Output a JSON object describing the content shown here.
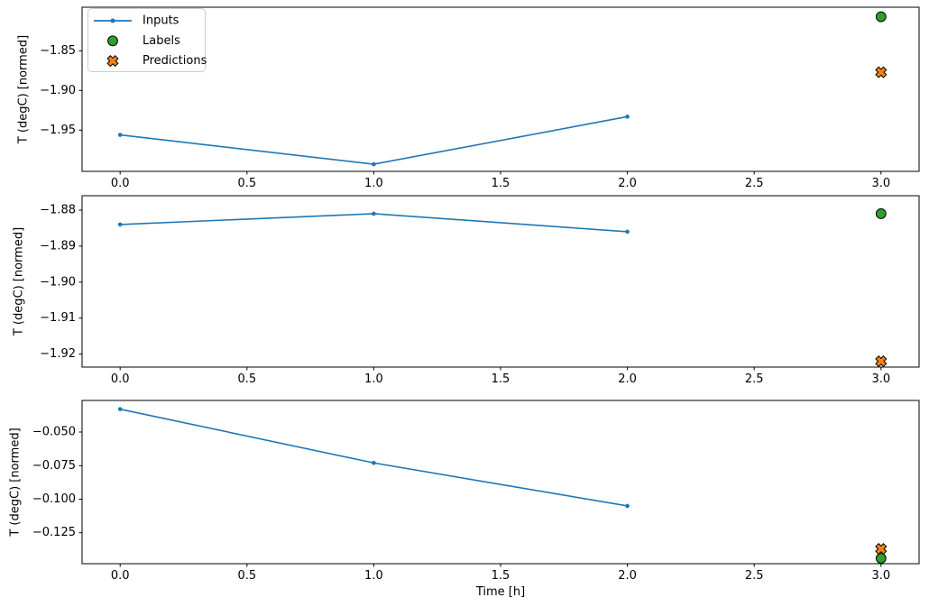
{
  "figure": {
    "background": "#ffffff",
    "x_axis_label": "Time [h]",
    "y_axis_label": "T (degC) [normed]",
    "colors": {
      "inputs": "#1f77b4",
      "labels": "#2ca02c",
      "predictions": "#ff7f0e",
      "marker_edge": "#000000",
      "legend_border": "#cccccc"
    },
    "legend": {
      "position": "upper left",
      "entries": [
        {
          "label": "Inputs",
          "marker": "line-with-dot",
          "color": "#1f77b4"
        },
        {
          "label": "Labels",
          "marker": "filled-circle",
          "color": "#2ca02c"
        },
        {
          "label": "Predictions",
          "marker": "filled-x",
          "color": "#ff7f0e"
        }
      ]
    }
  },
  "chart_data": [
    {
      "type": "line",
      "subplot": 1,
      "ylabel": "T (degC) [normed]",
      "xlim": [
        -0.15,
        3.15
      ],
      "ylim": [
        -2.002,
        -1.795
      ],
      "xticks": [
        0.0,
        0.5,
        1.0,
        1.5,
        2.0,
        2.5,
        3.0
      ],
      "xtick_labels": [
        "0.0",
        "0.5",
        "1.0",
        "1.5",
        "2.0",
        "2.5",
        "3.0"
      ],
      "yticks": [
        -1.85,
        -1.9,
        -1.95
      ],
      "ytick_labels": [
        "−1.85",
        "−1.90",
        "−1.95"
      ],
      "grid": false,
      "series": [
        {
          "name": "Inputs",
          "style": "line-with-dots",
          "color": "#1f77b4",
          "x": [
            0,
            1,
            2
          ],
          "y": [
            -1.956,
            -1.993,
            -1.933
          ]
        },
        {
          "name": "Labels",
          "style": "filled-circle",
          "color": "#2ca02c",
          "x": [
            3
          ],
          "y": [
            -1.807
          ]
        },
        {
          "name": "Predictions",
          "style": "filled-x",
          "color": "#ff7f0e",
          "x": [
            3
          ],
          "y": [
            -1.877
          ]
        }
      ]
    },
    {
      "type": "line",
      "subplot": 2,
      "ylabel": "T (degC) [normed]",
      "xlim": [
        -0.15,
        3.15
      ],
      "ylim": [
        -1.9236,
        -1.876
      ],
      "xticks": [
        0.0,
        0.5,
        1.0,
        1.5,
        2.0,
        2.5,
        3.0
      ],
      "xtick_labels": [
        "0.0",
        "0.5",
        "1.0",
        "1.5",
        "2.0",
        "2.5",
        "3.0"
      ],
      "yticks": [
        -1.88,
        -1.89,
        -1.9,
        -1.91,
        -1.92
      ],
      "ytick_labels": [
        "−1.88",
        "−1.89",
        "−1.90",
        "−1.91",
        "−1.92"
      ],
      "grid": false,
      "series": [
        {
          "name": "Inputs",
          "style": "line-with-dots",
          "color": "#1f77b4",
          "x": [
            0,
            1,
            2
          ],
          "y": [
            -1.884,
            -1.881,
            -1.886
          ]
        },
        {
          "name": "Labels",
          "style": "filled-circle",
          "color": "#2ca02c",
          "x": [
            3
          ],
          "y": [
            -1.881
          ]
        },
        {
          "name": "Predictions",
          "style": "filled-x",
          "color": "#ff7f0e",
          "x": [
            3
          ],
          "y": [
            -1.922
          ]
        }
      ]
    },
    {
      "type": "line",
      "subplot": 3,
      "ylabel": "T (degC) [normed]",
      "xlabel": "Time [h]",
      "xlim": [
        -0.15,
        3.15
      ],
      "ylim": [
        -0.148,
        -0.0265
      ],
      "xticks": [
        0.0,
        0.5,
        1.0,
        1.5,
        2.0,
        2.5,
        3.0
      ],
      "xtick_labels": [
        "0.0",
        "0.5",
        "1.0",
        "1.5",
        "2.0",
        "2.5",
        "3.0"
      ],
      "yticks": [
        -0.05,
        -0.075,
        -0.1,
        -0.125
      ],
      "ytick_labels": [
        "−0.050",
        "−0.075",
        "−0.100",
        "−0.125"
      ],
      "grid": false,
      "series": [
        {
          "name": "Inputs",
          "style": "line-with-dots",
          "color": "#1f77b4",
          "x": [
            0,
            1,
            2
          ],
          "y": [
            -0.033,
            -0.073,
            -0.105
          ]
        },
        {
          "name": "Labels",
          "style": "filled-circle",
          "color": "#2ca02c",
          "x": [
            3
          ],
          "y": [
            -0.144
          ]
        },
        {
          "name": "Predictions",
          "style": "filled-x",
          "color": "#ff7f0e",
          "x": [
            3
          ],
          "y": [
            -0.137
          ]
        }
      ]
    }
  ]
}
